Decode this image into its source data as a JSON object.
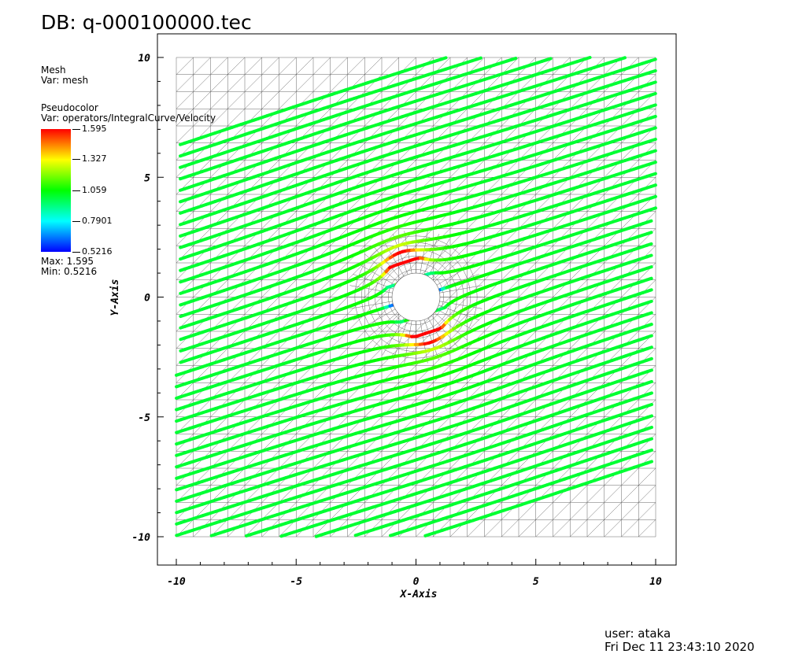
{
  "header": {
    "title": "DB: q-000100000.tec"
  },
  "legend": {
    "mesh_label": "Mesh",
    "mesh_var": "Var: mesh",
    "pc_label": "Pseudocolor",
    "pc_var": "Var: operators/IntegralCurve/Velocity",
    "ticks": [
      "1.595",
      "1.327",
      "1.059",
      "0.7901",
      "0.5216"
    ],
    "max_text": "Max:  1.595",
    "min_text": "Min:  0.5216"
  },
  "footer": {
    "user": "user: ataka",
    "date": "Fri Dec 11 23:43:10 2020"
  },
  "chart_data": {
    "type": "line",
    "title": "DB: q-000100000.tec",
    "xlabel": "X-Axis",
    "ylabel": "Y-Axis",
    "xlim": [
      -10,
      10
    ],
    "ylim": [
      -10,
      10
    ],
    "x_ticks": [
      "-10",
      "-5",
      "0",
      "5",
      "10"
    ],
    "y_ticks": [
      "10",
      "5",
      "0",
      "-5",
      "-10"
    ],
    "color_range": {
      "min": 0.5216,
      "max": 1.595
    },
    "obstacle": {
      "shape": "circle",
      "center": [
        0,
        0
      ],
      "radius": 1
    },
    "colors": {
      "low": "#0000ff",
      "mid_low": "#00ffff",
      "mid": "#00ff00",
      "mid_high": "#ffff00",
      "high": "#ff0000"
    },
    "streamlines": {
      "count": 42,
      "slope": 0.325,
      "free_stream_value": 1.0
    }
  }
}
